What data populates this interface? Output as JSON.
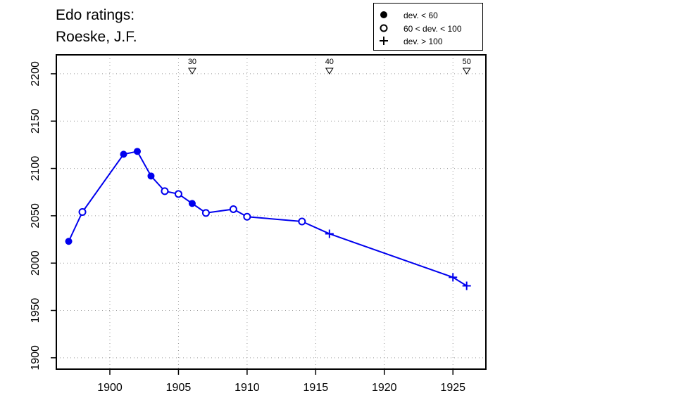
{
  "title_lines": [
    "Edo ratings:",
    "Roeske, J.F."
  ],
  "legend": [
    {
      "symbol": "filled-circle",
      "label": "dev. < 60"
    },
    {
      "symbol": "open-circle",
      "label": "60 < dev. < 100"
    },
    {
      "symbol": "plus",
      "label": "dev. > 100"
    }
  ],
  "colors": {
    "series": "#0000ee",
    "axis": "#000000",
    "grid": "#999999"
  },
  "chart_data": {
    "type": "line",
    "title": "Edo ratings: Roeske, J.F.",
    "xlabel": "",
    "ylabel": "",
    "xlim": [
      1896.1,
      1927.4
    ],
    "ylim": [
      1888,
      2220
    ],
    "xticks": [
      1900,
      1905,
      1910,
      1915,
      1920,
      1925
    ],
    "yticks": [
      1900,
      1950,
      2000,
      2050,
      2100,
      2150,
      2200
    ],
    "grid": true,
    "legend_position": "top-right",
    "series": [
      {
        "points": [
          {
            "x": 1897,
            "y": 2023,
            "marker": "filled-circle"
          },
          {
            "x": 1898,
            "y": 2054,
            "marker": "open-circle"
          },
          {
            "x": 1901,
            "y": 2115,
            "marker": "filled-circle"
          },
          {
            "x": 1902,
            "y": 2118,
            "marker": "filled-circle"
          },
          {
            "x": 1903,
            "y": 2092,
            "marker": "filled-circle"
          },
          {
            "x": 1904,
            "y": 2076,
            "marker": "open-circle"
          },
          {
            "x": 1905,
            "y": 2073,
            "marker": "open-circle"
          },
          {
            "x": 1906,
            "y": 2063,
            "marker": "filled-circle"
          },
          {
            "x": 1907,
            "y": 2053,
            "marker": "open-circle"
          },
          {
            "x": 1909,
            "y": 2057,
            "marker": "open-circle"
          },
          {
            "x": 1910,
            "y": 2049,
            "marker": "open-circle"
          },
          {
            "x": 1914,
            "y": 2044,
            "marker": "open-circle"
          },
          {
            "x": 1916,
            "y": 2031,
            "marker": "plus"
          },
          {
            "x": 1925,
            "y": 1985,
            "marker": "plus"
          },
          {
            "x": 1926,
            "y": 1976,
            "marker": "plus"
          }
        ]
      }
    ],
    "annotations": [
      {
        "x": 1906,
        "label": "30",
        "marker": "down-triangle"
      },
      {
        "x": 1916,
        "label": "40",
        "marker": "down-triangle"
      },
      {
        "x": 1926,
        "label": "50",
        "marker": "down-triangle"
      }
    ]
  }
}
